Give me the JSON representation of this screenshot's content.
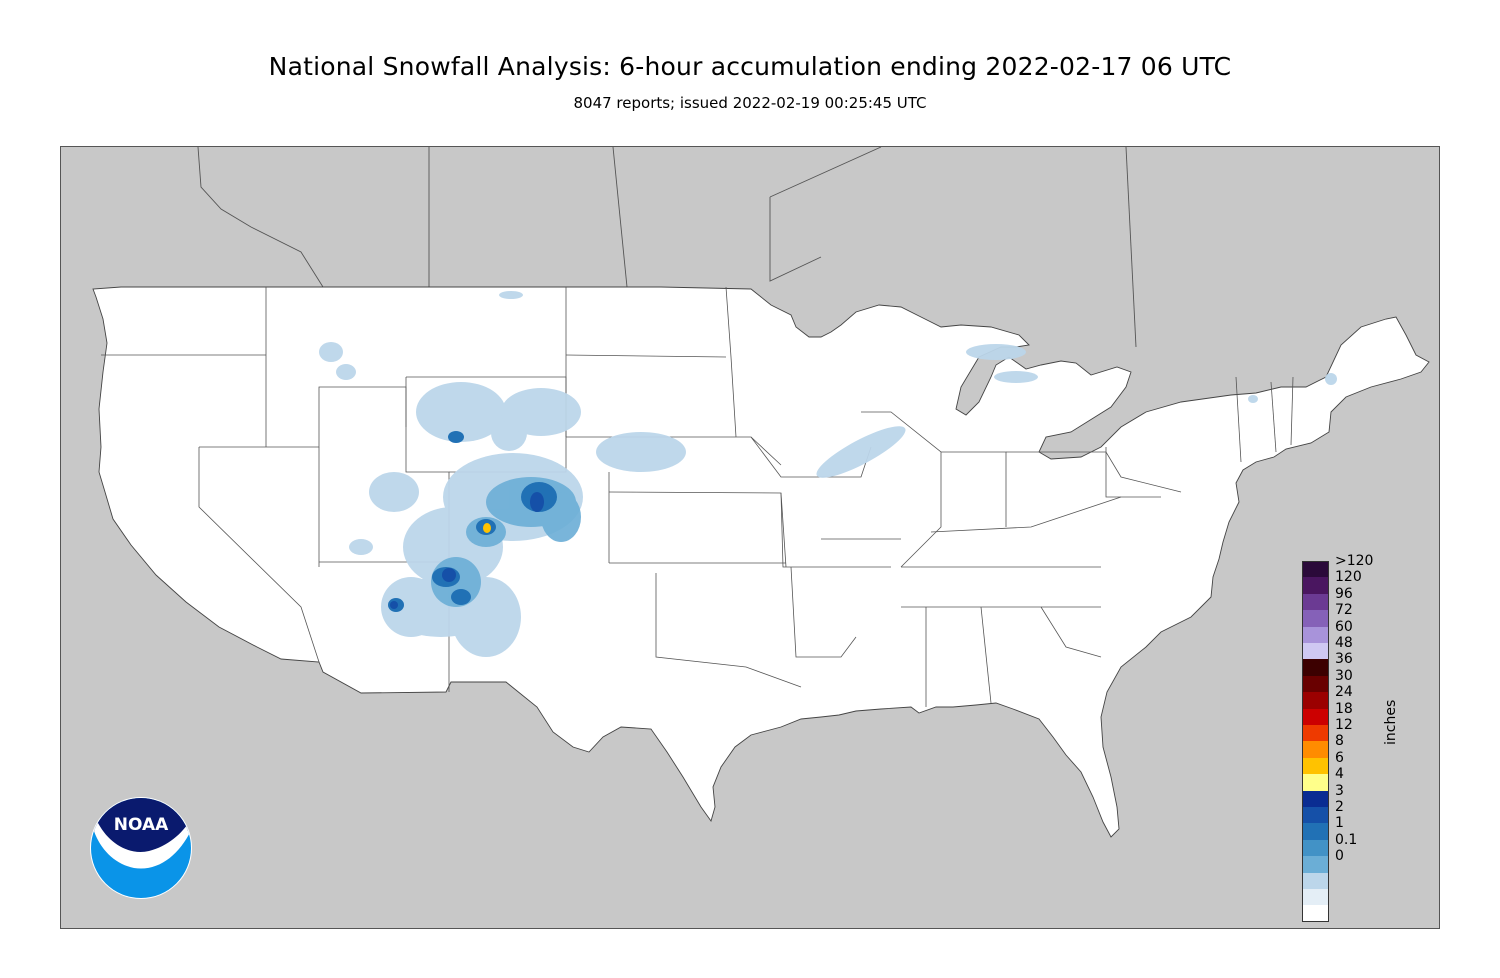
{
  "header": {
    "title": "National Snowfall Analysis: 6-hour accumulation ending 2022-02-17 06 UTC",
    "subtitle": "8047 reports; issued 2022-02-19 00:25:45 UTC"
  },
  "map": {
    "region": "Contiguous United States",
    "colors": {
      "ocean_land_outside": "#c8c8c8",
      "us_land": "#ffffff",
      "borders": "#555555"
    }
  },
  "legend": {
    "unit_label": "inches",
    "levels": [
      {
        "label": ">120",
        "color": "#2b0a3a"
      },
      {
        "label": "120",
        "color": "#4a1660"
      },
      {
        "label": "96",
        "color": "#6b3a93"
      },
      {
        "label": "72",
        "color": "#8561b8"
      },
      {
        "label": "60",
        "color": "#a893da"
      },
      {
        "label": "48",
        "color": "#cfc8f2"
      },
      {
        "label": "36",
        "color": "#3c0000"
      },
      {
        "label": "30",
        "color": "#690000"
      },
      {
        "label": "24",
        "color": "#9b0000"
      },
      {
        "label": "18",
        "color": "#cc0000"
      },
      {
        "label": "12",
        "color": "#ee3a00"
      },
      {
        "label": "8",
        "color": "#ff8c00"
      },
      {
        "label": "6",
        "color": "#ffc200"
      },
      {
        "label": "4",
        "color": "#ffff8a"
      },
      {
        "label": "3",
        "color": "#0a2c92"
      },
      {
        "label": "2",
        "color": "#1550a8"
      },
      {
        "label": "1",
        "color": "#2171b5"
      },
      {
        "label": "0.1",
        "color": "#4292c6"
      },
      {
        "label": "0",
        "color": "#6baed6"
      },
      {
        "label": "",
        "color": "#bcd6ea"
      },
      {
        "label": "",
        "color": "#e4eef6"
      },
      {
        "label": "",
        "color": "#ffffff"
      }
    ]
  },
  "logo": {
    "text": "NOAA",
    "colors": {
      "top": "#0a1a6e",
      "bottom": "#0a94e8",
      "bird": "#ffffff"
    }
  }
}
